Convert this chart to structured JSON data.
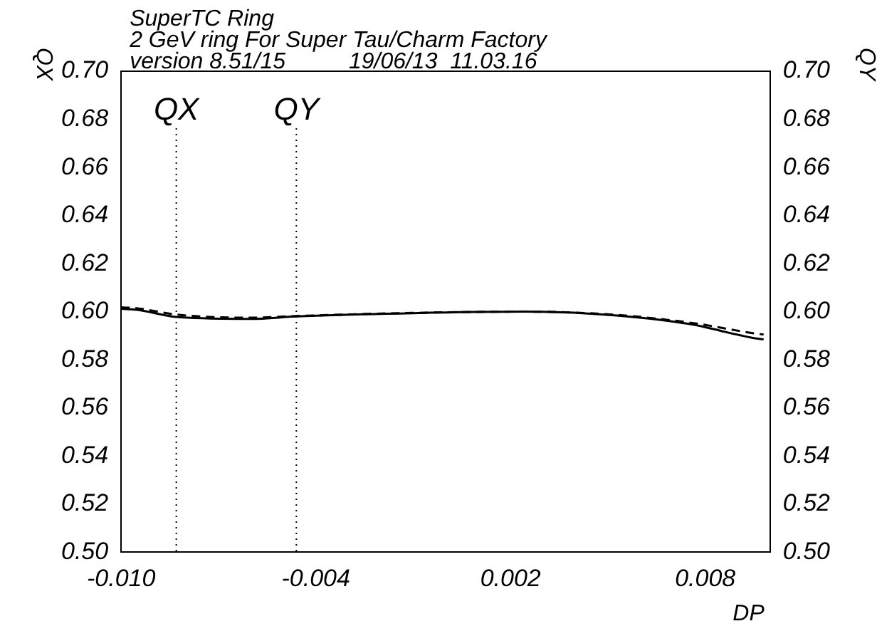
{
  "chart_data": {
    "type": "line",
    "title": [
      "SuperTC Ring",
      "2 GeV ring For Super Tau/Charm Factory",
      "version 8.51/15          19/06/13  11.03.16"
    ],
    "xlabel": "DP",
    "ylabel": "QX",
    "y2label": "QY",
    "x": [
      -0.01,
      -0.0095,
      -0.0083,
      -0.006,
      -0.0046,
      -0.001,
      0.0024,
      0.0049,
      0.0075,
      0.0095,
      0.0098
    ],
    "series": [
      {
        "color": "#000000",
        "line_style": "solid",
        "values": [
          0.6012,
          0.6008,
          0.5978,
          0.597,
          0.598,
          0.5994,
          0.6,
          0.5988,
          0.5949,
          0.589,
          0.5885
        ]
      },
      {
        "color": "#000000",
        "line_style": "dashed",
        "axis": "y2",
        "values": [
          0.6018,
          0.6014,
          0.5988,
          0.5975,
          0.5982,
          0.5995,
          0.6,
          0.599,
          0.5955,
          0.591,
          0.5905
        ]
      }
    ],
    "xlim": [
      -0.01,
      0.01
    ],
    "xticks": [
      {
        "value": -0.01,
        "label": "-0.010"
      },
      -0.004,
      0.002,
      0.008
    ],
    "ylim": [
      0.5,
      0.7
    ],
    "yticks": [
      {
        "value": 0.5,
        "label": "0.50"
      },
      0.52,
      0.54,
      0.56,
      0.58,
      {
        "value": 0.6,
        "label": "0.60"
      },
      0.62,
      0.64,
      0.66,
      0.68,
      {
        "value": 0.7,
        "label": "0.70"
      }
    ],
    "y2lim": [
      0.5,
      0.7
    ],
    "y2ticks": [
      {
        "value": 0.5,
        "label": "0.50"
      },
      0.52,
      0.54,
      0.56,
      0.58,
      {
        "value": 0.6,
        "label": "0.60"
      },
      0.62,
      0.64,
      0.66,
      0.68,
      {
        "value": 0.7,
        "label": "0.70"
      }
    ],
    "ref_lines": [
      {
        "axis": "x",
        "value": -0.0083,
        "label": "QX",
        "line_style": "dotted"
      },
      {
        "axis": "x",
        "value": -0.0046,
        "label": "QY",
        "line_style": "dotted"
      }
    ],
    "grid": false,
    "legend": false
  }
}
